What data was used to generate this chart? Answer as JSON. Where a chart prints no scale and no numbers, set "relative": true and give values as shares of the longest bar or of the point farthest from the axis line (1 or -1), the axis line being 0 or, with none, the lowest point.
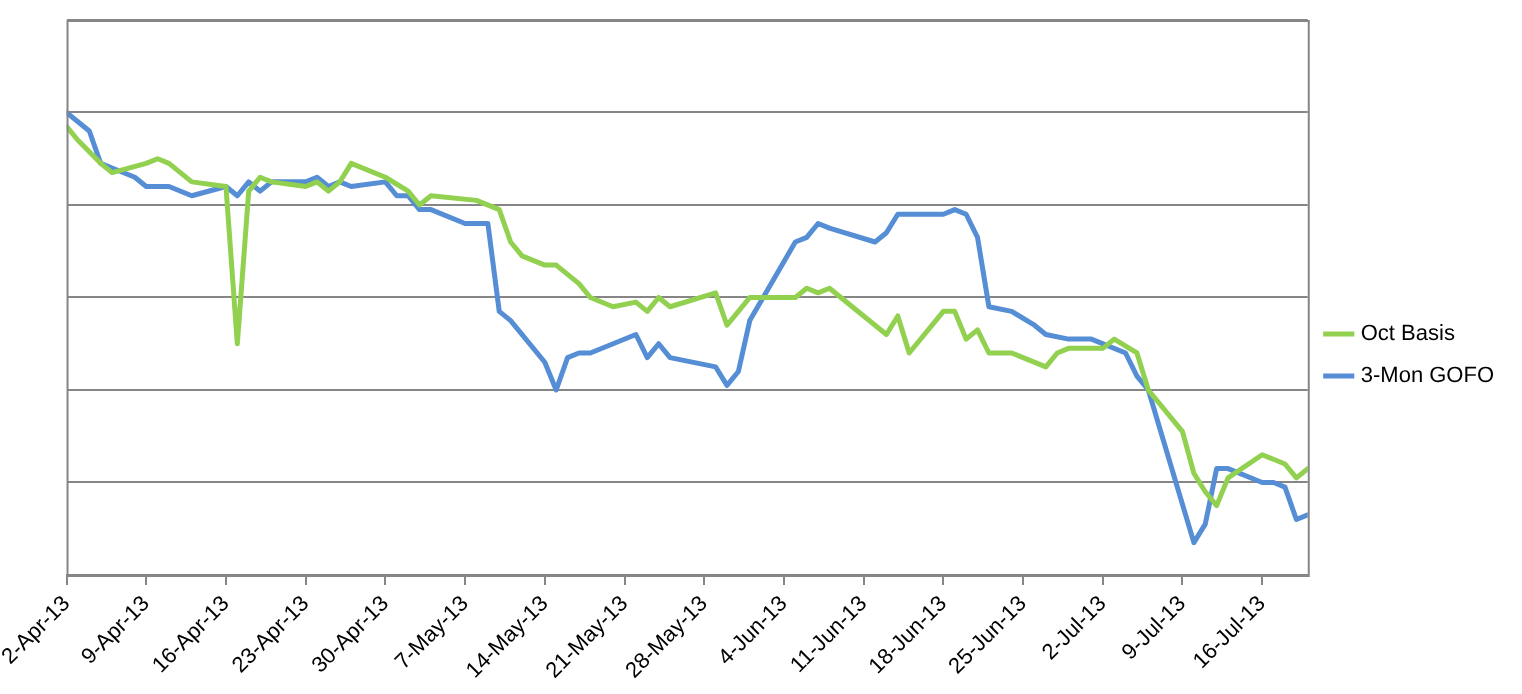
{
  "chart_data": {
    "type": "line",
    "relative": true,
    "grid": "y",
    "legend": "right",
    "marker": "none",
    "line_style": "solid",
    "xlim": [
      "--04-02",
      "--07-20"
    ],
    "xticks": [
      {
        "value": "--04-02",
        "label": "2-Apr-13"
      },
      {
        "value": "--04-09",
        "label": "9-Apr-13"
      },
      {
        "value": "--04-16",
        "label": "16-Apr-13"
      },
      {
        "value": "--04-23",
        "label": "23-Apr-13"
      },
      {
        "value": "--04-30",
        "label": "30-Apr-13"
      },
      {
        "value": "--05-07",
        "label": "7-May-13"
      },
      {
        "value": "--05-14",
        "label": "14-May-13"
      },
      {
        "value": "--05-21",
        "label": "21-May-13"
      },
      {
        "value": "--05-28",
        "label": "28-May-13"
      },
      {
        "value": "--06-04",
        "label": "4-Jun-13"
      },
      {
        "value": "--06-11",
        "label": "11-Jun-13"
      },
      {
        "value": "--06-18",
        "label": "18-Jun-13"
      },
      {
        "value": "--06-25",
        "label": "25-Jun-13"
      },
      {
        "value": "--07-02",
        "label": "2-Jul-13"
      },
      {
        "value": "--07-09",
        "label": "9-Jul-13"
      },
      {
        "value": "--07-16",
        "label": "16-Jul-13"
      }
    ],
    "series": [
      {
        "name": "Oct Basis",
        "color": "#92d050",
        "x": [
          "--04-02",
          "--04-03",
          "--04-05",
          "--04-06",
          "--04-09",
          "--04-10",
          "--04-11",
          "--04-13",
          "--04-16",
          "--04-17",
          "--04-18",
          "--04-19",
          "--04-20",
          "--04-23",
          "--04-24",
          "--04-25",
          "--04-26",
          "--04-27",
          "--04-30",
          "--05-02",
          "--05-03",
          "--05-04",
          "--05-08",
          "--05-10",
          "--05-11",
          "--05-12",
          "--05-14",
          "--05-15",
          "--05-16",
          "--05-17",
          "--05-18",
          "--05-20",
          "--05-22",
          "--05-23",
          "--05-24",
          "--05-25",
          "--05-29",
          "--05-30",
          "--05-31",
          "--06-01",
          "--06-05",
          "--06-06",
          "--06-07",
          "--06-08",
          "--06-13",
          "--06-14",
          "--06-15",
          "--06-18",
          "--06-19",
          "--06-20",
          "--06-21",
          "--06-22",
          "--06-24",
          "--06-27",
          "--06-28",
          "--06-29",
          "--07-02",
          "--07-03",
          "--07-05",
          "--07-06",
          "--07-09",
          "--07-10",
          "--07-11",
          "--07-12",
          "--07-13",
          "--07-16",
          "--07-18",
          "--07-19",
          "--07-20"
        ],
        "values": [
          0.97,
          0.94,
          0.89,
          0.87,
          0.89,
          0.9,
          0.89,
          0.85,
          0.84,
          0.5,
          0.83,
          0.86,
          0.85,
          0.84,
          0.85,
          0.83,
          0.85,
          0.89,
          0.86,
          0.83,
          0.8,
          0.82,
          0.81,
          0.79,
          0.72,
          0.69,
          0.67,
          0.67,
          0.65,
          0.63,
          0.6,
          0.58,
          0.59,
          0.57,
          0.6,
          0.58,
          0.61,
          0.54,
          0.57,
          0.6,
          0.6,
          0.62,
          0.61,
          0.62,
          0.52,
          0.56,
          0.48,
          0.57,
          0.57,
          0.51,
          0.53,
          0.48,
          0.48,
          0.45,
          0.48,
          0.49,
          0.49,
          0.51,
          0.48,
          0.4,
          0.31,
          0.22,
          0.18,
          0.15,
          0.21,
          0.26,
          0.24,
          0.21,
          0.23
        ]
      },
      {
        "name": "3-Mon GOFO",
        "color": "#558ed5",
        "x": [
          "--04-02",
          "--04-04",
          "--04-05",
          "--04-06",
          "--04-08",
          "--04-09",
          "--04-11",
          "--04-13",
          "--04-16",
          "--04-17",
          "--04-18",
          "--04-19",
          "--04-20",
          "--04-23",
          "--04-24",
          "--04-25",
          "--04-26",
          "--04-27",
          "--04-30",
          "--05-01",
          "--05-02",
          "--05-03",
          "--05-04",
          "--05-07",
          "--05-09",
          "--05-10",
          "--05-11",
          "--05-14",
          "--05-15",
          "--05-16",
          "--05-17",
          "--05-18",
          "--05-20",
          "--05-22",
          "--05-23",
          "--05-24",
          "--05-25",
          "--05-29",
          "--05-30",
          "--05-31",
          "--06-01",
          "--06-05",
          "--06-06",
          "--06-07",
          "--06-08",
          "--06-12",
          "--06-13",
          "--06-14",
          "--06-18",
          "--06-19",
          "--06-20",
          "--06-21",
          "--06-22",
          "--06-24",
          "--06-26",
          "--06-27",
          "--06-29",
          "--07-01",
          "--07-04",
          "--07-05",
          "--07-06",
          "--07-10",
          "--07-11",
          "--07-12",
          "--07-13",
          "--07-16",
          "--07-17",
          "--07-18",
          "--07-19",
          "--07-20"
        ],
        "values": [
          1.0,
          0.96,
          0.89,
          0.88,
          0.86,
          0.84,
          0.84,
          0.82,
          0.84,
          0.82,
          0.85,
          0.83,
          0.85,
          0.85,
          0.86,
          0.84,
          0.85,
          0.84,
          0.85,
          0.82,
          0.82,
          0.79,
          0.79,
          0.76,
          0.76,
          0.57,
          0.55,
          0.46,
          0.4,
          0.47,
          0.48,
          0.48,
          0.5,
          0.52,
          0.47,
          0.5,
          0.47,
          0.45,
          0.41,
          0.44,
          0.55,
          0.72,
          0.73,
          0.76,
          0.75,
          0.72,
          0.74,
          0.78,
          0.78,
          0.79,
          0.78,
          0.73,
          0.58,
          0.57,
          0.54,
          0.52,
          0.51,
          0.51,
          0.48,
          0.43,
          0.4,
          0.07,
          0.11,
          0.23,
          0.23,
          0.2,
          0.2,
          0.19,
          0.12,
          0.13
        ]
      }
    ]
  }
}
